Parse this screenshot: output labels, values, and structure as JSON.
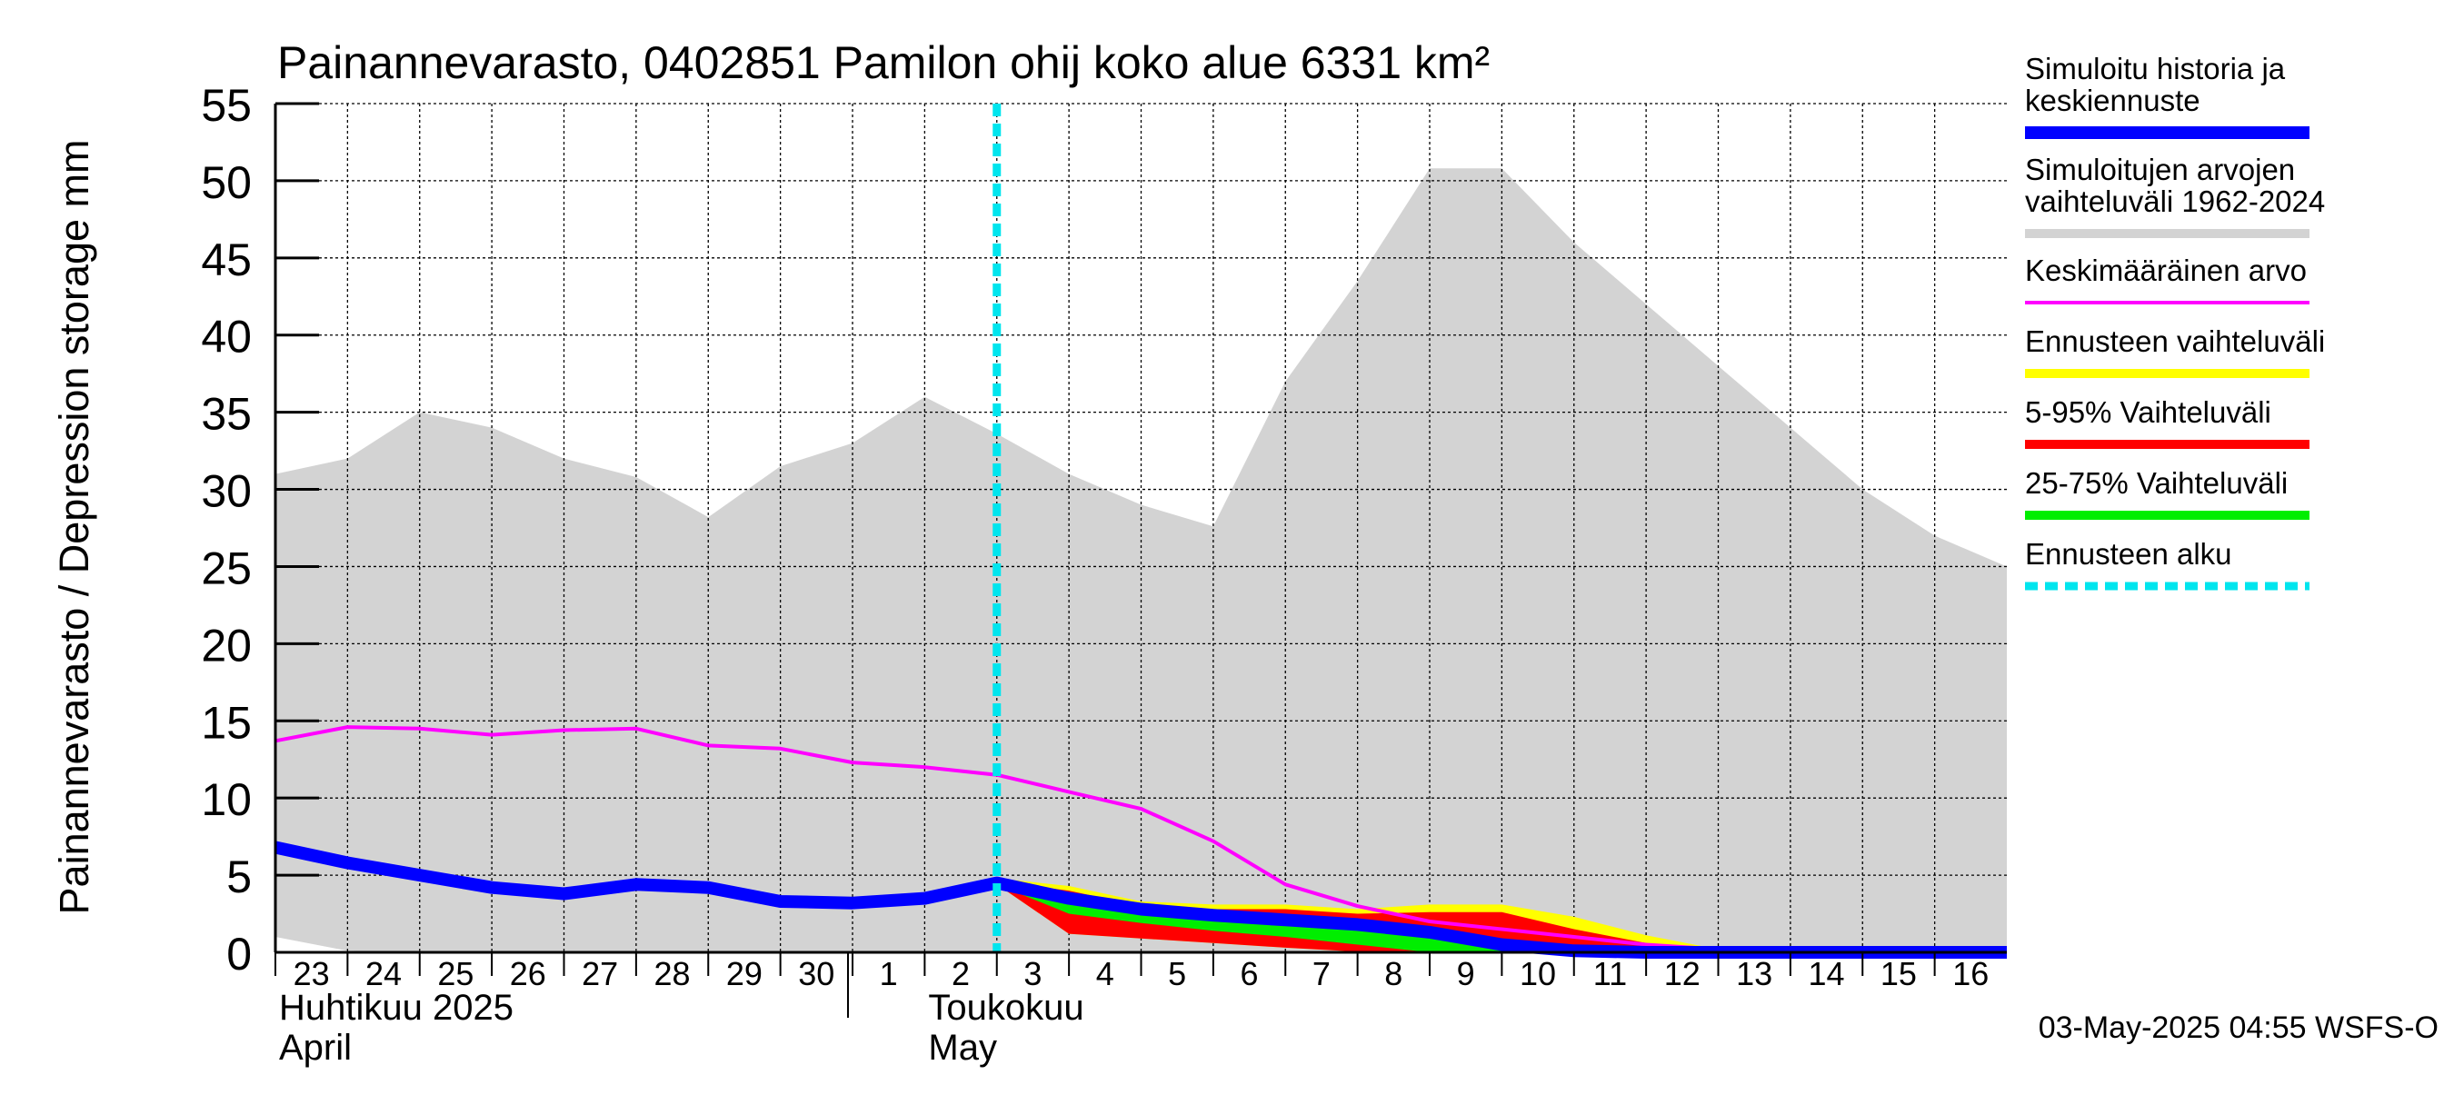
{
  "chart_data": {
    "type": "area",
    "title": "Painannevarasto, 0402851 Pamilon ohij koko alue 6331 km²",
    "ylabel": "Painannevarasto / Depression storage    mm",
    "ylim": [
      0,
      55
    ],
    "yticks": [
      0,
      5,
      10,
      15,
      20,
      25,
      30,
      35,
      40,
      45,
      50,
      55
    ],
    "xlim": [
      0,
      24
    ],
    "grid": true,
    "day_labels": [
      "23",
      "24",
      "25",
      "26",
      "27",
      "28",
      "29",
      "30",
      "1",
      "2",
      "3",
      "4",
      "5",
      "6",
      "7",
      "8",
      "9",
      "10",
      "11",
      "12",
      "13",
      "14",
      "15",
      "16"
    ],
    "month_labels": [
      {
        "fi": "Huhtikuu  2025",
        "en": "April",
        "day_index": 0
      },
      {
        "fi": "Toukokuu",
        "en": "May",
        "day_index": 9
      }
    ],
    "month_boundary_index": 8,
    "forecast_start_index": 10,
    "timestamp": "03-May-2025 04:55 WSFS-O",
    "x": [
      0,
      1,
      2,
      3,
      4,
      5,
      6,
      7,
      8,
      9,
      10,
      11,
      12,
      13,
      14,
      15,
      16,
      17,
      18,
      19,
      20,
      21,
      22,
      23,
      24
    ],
    "series": [
      {
        "name": "Simuloitujen arvojen vaihteluväli 1962-2024",
        "kind": "band",
        "color": "#d3d3d3",
        "upper": [
          31,
          32,
          35,
          34,
          32,
          30.8,
          28.2,
          31.5,
          33,
          36,
          33.6,
          31,
          29,
          27.6,
          37,
          43.5,
          50.8,
          50.8,
          46,
          42,
          38,
          34,
          30,
          27,
          25
        ],
        "lower": [
          1,
          0.1,
          0,
          0,
          0,
          0,
          0,
          0,
          0,
          0,
          0,
          0,
          0,
          0,
          0,
          0,
          0,
          0,
          0,
          0,
          0,
          0,
          0,
          0,
          0
        ]
      },
      {
        "name": "Ennusteen vaihteluväli",
        "kind": "band",
        "color": "#ffff00",
        "x_start_index": 10,
        "upper": [
          4.8,
          4.3,
          3.3,
          3.1,
          3.1,
          2.8,
          3.1,
          3.1,
          2.3,
          1.1,
          0.2,
          0.1,
          0.1,
          0.1,
          0.1
        ],
        "lower": [
          4.4,
          1.2,
          0.9,
          0.6,
          0.3,
          0.05,
          0,
          0,
          0,
          0,
          0,
          0,
          0,
          0,
          0
        ]
      },
      {
        "name": "5-95% Vaihteluväli",
        "kind": "band",
        "color": "#ff0000",
        "x_start_index": 10,
        "upper": [
          4.6,
          4,
          3,
          2.8,
          2.8,
          2.5,
          2.6,
          2.6,
          1.5,
          0.6,
          0.1,
          0.05,
          0.05,
          0.05,
          0.05
        ],
        "lower": [
          4.4,
          1.2,
          0.9,
          0.6,
          0.3,
          0.05,
          0,
          0,
          0,
          0,
          0,
          0,
          0,
          0,
          0
        ]
      },
      {
        "name": "25-75% Vaihteluväli",
        "kind": "band",
        "color": "#00ee00",
        "x_start_index": 10,
        "upper": [
          4.5,
          3.2,
          2.6,
          2.2,
          1.9,
          1.6,
          1.3,
          0.6,
          0.2,
          0.05,
          0.05,
          0.05,
          0.05,
          0.05,
          0.05
        ],
        "lower": [
          4.4,
          2.5,
          1.9,
          1.4,
          1.0,
          0.5,
          0,
          0,
          0,
          0,
          0,
          0,
          0,
          0,
          0
        ]
      },
      {
        "name": "Keskimääräinen arvo",
        "kind": "line",
        "color": "#ff00ff",
        "values": [
          13.7,
          14.6,
          14.5,
          14.1,
          14.4,
          14.5,
          13.4,
          13.2,
          12.3,
          12,
          11.5,
          10.4,
          9.3,
          7.2,
          4.4,
          3,
          2,
          1.5,
          1,
          0.5,
          0.2,
          0,
          0,
          0,
          0
        ]
      },
      {
        "name": "Simuloitu historia ja keskiennuste",
        "kind": "line",
        "color": "#0000ff",
        "values": [
          6.8,
          5.8,
          5,
          4.2,
          3.8,
          4.4,
          4.2,
          3.3,
          3.2,
          3.5,
          4.5,
          3.5,
          2.8,
          2.4,
          2.1,
          1.8,
          1.3,
          0.5,
          0.1,
          0,
          0,
          0,
          0,
          0,
          0
        ]
      }
    ],
    "legend": {
      "placement": "right",
      "entries": [
        {
          "lines": [
            "Simuloitu historia ja",
            "keskiennuste"
          ],
          "color": "#0000ff",
          "style": "thick"
        },
        {
          "lines": [
            "Simuloitujen arvojen",
            "vaihteluväli 1962-2024"
          ],
          "color": "#d3d3d3",
          "style": "bar"
        },
        {
          "lines": [
            "Keskimääräinen arvo"
          ],
          "color": "#ff00ff",
          "style": "thin"
        },
        {
          "lines": [
            "Ennusteen vaihteluväli"
          ],
          "color": "#ffff00",
          "style": "bar"
        },
        {
          "lines": [
            "5-95% Vaihteluväli"
          ],
          "color": "#ff0000",
          "style": "bar"
        },
        {
          "lines": [
            "25-75% Vaihteluväli"
          ],
          "color": "#00ee00",
          "style": "bar"
        },
        {
          "lines": [
            "Ennusteen alku"
          ],
          "color": "#00e5ee",
          "style": "dashed"
        }
      ]
    }
  }
}
